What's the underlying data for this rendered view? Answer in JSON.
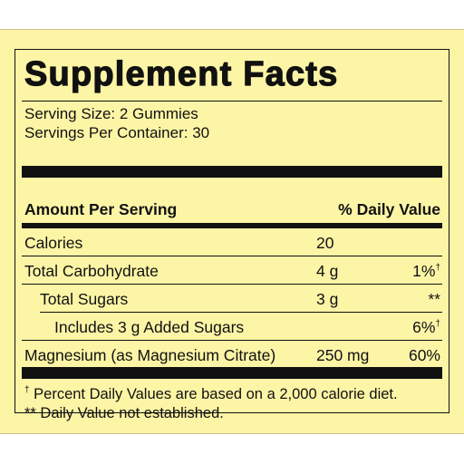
{
  "title": "Supplement Facts",
  "serving_size": "Serving Size: 2 Gummies",
  "servings_per_container": "Servings Per Container: 30",
  "header": {
    "amount_label": "Amount Per Serving",
    "dv_label": "% Daily Value"
  },
  "rows": [
    {
      "name": "Calories",
      "amount": "20",
      "dv": ""
    },
    {
      "name": "Total Carbohydrate",
      "amount": "4 g",
      "dv": "1%",
      "dv_mark": "†"
    },
    {
      "name": "Total Sugars",
      "amount": "3 g",
      "dv": "**"
    },
    {
      "name": "Includes 3 g Added Sugars",
      "amount": "",
      "dv": "6%",
      "dv_mark": "†"
    },
    {
      "name": "Magnesium (as Magnesium Citrate)",
      "amount": "250 mg",
      "dv": "60%"
    }
  ],
  "footnotes": {
    "dagger_mark": "†",
    "dagger": " Percent Daily Values are based on a 2,000 calorie diet.",
    "double_star": "** Daily Value not established."
  }
}
